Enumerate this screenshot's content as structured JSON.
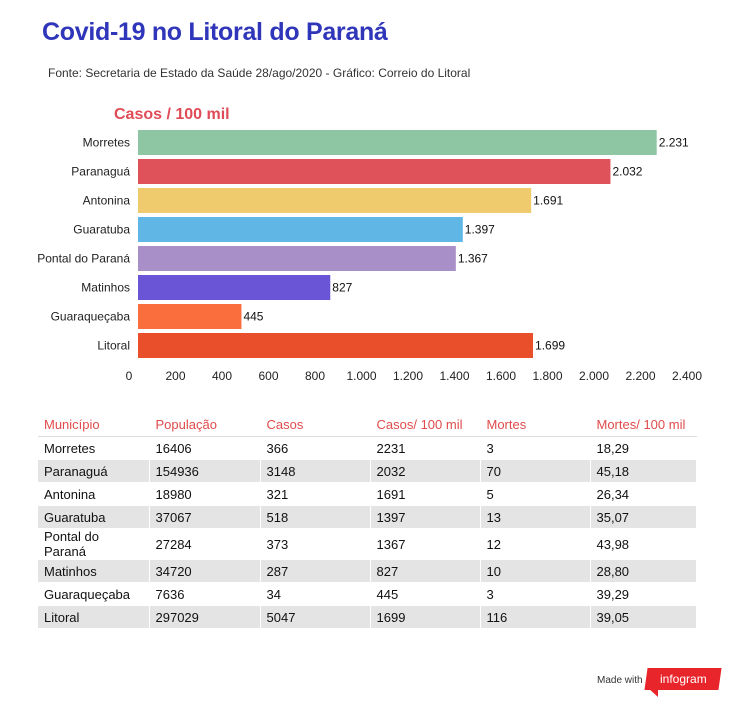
{
  "header": {
    "title": "Covid-19 no Litoral do Paraná",
    "source": "Fonte: Secretaria de Estado da Saúde 28/ago/2020 - Gráfico: Correio do Litoral"
  },
  "chart_data": {
    "type": "bar",
    "orientation": "horizontal",
    "title": "Casos / 100 mil",
    "title_color": "#e04b57",
    "categories": [
      "Morretes",
      "Paranaguá",
      "Antonina",
      "Guaratuba",
      "Pontal do Paraná",
      "Matinhos",
      "Guaraqueçaba",
      "Litoral"
    ],
    "values": [
      2231,
      2032,
      1691,
      1397,
      1367,
      827,
      445,
      1699
    ],
    "value_labels": [
      "2.231",
      "2.032",
      "1.691",
      "1.397",
      "1.367",
      "827",
      "445",
      "1.699"
    ],
    "colors": [
      "#8ec6a4",
      "#e0525a",
      "#efcb6e",
      "#60b7e6",
      "#a98fc8",
      "#6a55d6",
      "#fa6d3d",
      "#e84f2a"
    ],
    "xlim": [
      0,
      2400
    ],
    "xticks": [
      0,
      200,
      400,
      600,
      800,
      1000,
      1200,
      1400,
      1600,
      1800,
      2000,
      2200,
      2400
    ],
    "xtick_labels": [
      "0",
      "200",
      "400",
      "600",
      "800",
      "1.000",
      "1.200",
      "1.400",
      "1.600",
      "1.800",
      "2.000",
      "2.200",
      "2.400"
    ],
    "grid": false,
    "legend": "none"
  },
  "table": {
    "header_color": "#e04b4b",
    "columns": [
      "Município",
      "População",
      "Casos",
      "Casos/ 100 mil",
      "Mortes",
      "Mortes/ 100 mil"
    ],
    "rows": [
      [
        "Morretes",
        "16406",
        "366",
        "2231",
        "3",
        "18,29"
      ],
      [
        "Paranaguá",
        "154936",
        "3148",
        "2032",
        "70",
        "45,18"
      ],
      [
        "Antonina",
        "18980",
        "321",
        "1691",
        "5",
        "26,34"
      ],
      [
        "Guaratuba",
        "37067",
        "518",
        "1397",
        "13",
        "35,07"
      ],
      [
        "Pontal do Paraná",
        "27284",
        "373",
        "1367",
        "12",
        "43,98"
      ],
      [
        "Matinhos",
        "34720",
        "287",
        "827",
        "10",
        "28,80"
      ],
      [
        "Guaraqueçaba",
        "7636",
        "34",
        "445",
        "3",
        "39,29"
      ],
      [
        "Litoral",
        "297029",
        "5047",
        "1699",
        "116",
        "39,05"
      ]
    ]
  },
  "footer": {
    "made_with": "Made with",
    "brand": "infogram",
    "brand_color": "#e8252b"
  }
}
